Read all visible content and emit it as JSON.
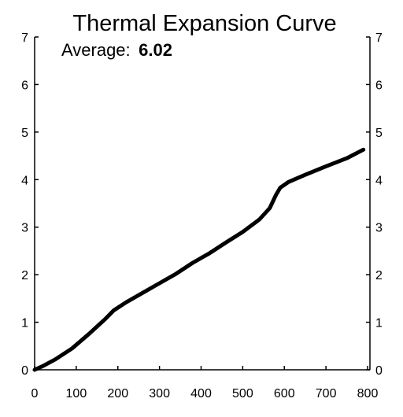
{
  "chart_data": {
    "type": "line",
    "title": "Thermal Expansion Curve",
    "subtitle_label": "Average:",
    "subtitle_value": "6.02",
    "xlabel": "",
    "ylabel": "",
    "xlim": [
      0,
      800
    ],
    "ylim": [
      0,
      7
    ],
    "x_ticks": [
      0,
      100,
      200,
      300,
      400,
      500,
      600,
      700,
      800
    ],
    "y_ticks": [
      0,
      1,
      2,
      3,
      4,
      5,
      6,
      7
    ],
    "right_axis_ticks": true,
    "grid": false,
    "legend": "none",
    "line_color": "#000000",
    "series": [
      {
        "x": [
          0,
          20,
          50,
          90,
          130,
          170,
          190,
          220,
          260,
          300,
          340,
          380,
          420,
          460,
          500,
          540,
          565,
          580,
          590,
          610,
          650,
          700,
          750,
          790
        ],
        "y": [
          0,
          0.08,
          0.22,
          0.45,
          0.75,
          1.07,
          1.25,
          1.42,
          1.62,
          1.82,
          2.02,
          2.25,
          2.45,
          2.68,
          2.9,
          3.16,
          3.4,
          3.68,
          3.83,
          3.95,
          4.1,
          4.28,
          4.45,
          4.63
        ]
      }
    ]
  }
}
